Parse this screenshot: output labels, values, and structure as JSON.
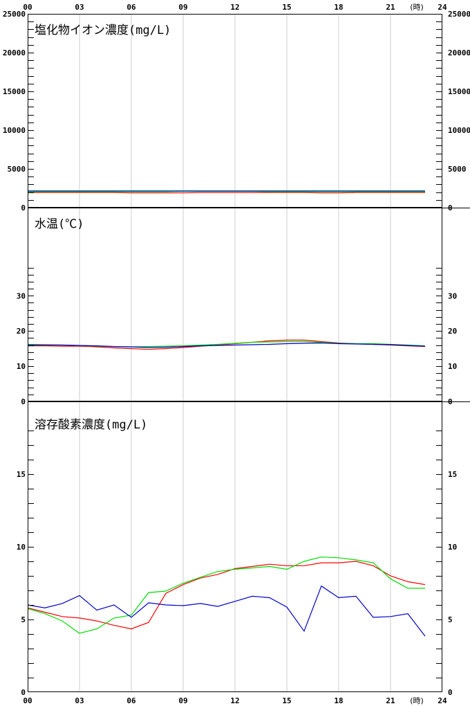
{
  "x_axis": {
    "ticks": [
      "00",
      "03",
      "06",
      "09",
      "12",
      "15",
      "18",
      "21",
      "24"
    ],
    "unit_label": "(時)"
  },
  "colors": {
    "red": "#ff0000",
    "green": "#00dd00",
    "blue": "#0000cc",
    "grid": "#cccccc"
  },
  "chart_data": [
    {
      "type": "line",
      "title": "塩化物イオン濃度(mg/L)",
      "x": [
        0,
        1,
        2,
        3,
        4,
        5,
        6,
        7,
        8,
        9,
        10,
        11,
        12,
        13,
        14,
        15,
        16,
        17,
        18,
        19,
        20,
        21,
        22,
        23
      ],
      "xlim": [
        0,
        24
      ],
      "ylim": [
        0,
        25000
      ],
      "yticks": [
        "0",
        "5000",
        "10000",
        "15000",
        "20000",
        "25000"
      ],
      "ytick_values": [
        0,
        5000,
        10000,
        15000,
        20000,
        25000
      ],
      "minor_step": 1000,
      "grid": "vertical",
      "series": [
        {
          "color": "red",
          "values": [
            1950,
            1950,
            1950,
            1950,
            1950,
            1950,
            1900,
            1900,
            1900,
            1900,
            1950,
            1950,
            1950,
            1950,
            1950,
            1950,
            1950,
            1900,
            1900,
            1950,
            1950,
            1950,
            1950,
            1950
          ]
        },
        {
          "color": "green",
          "values": [
            2050,
            2050,
            2050,
            2050,
            2050,
            2050,
            2050,
            2050,
            2050,
            2100,
            2100,
            2100,
            2100,
            2100,
            2050,
            2050,
            2050,
            2050,
            2050,
            2050,
            2050,
            2050,
            2050,
            2050
          ]
        },
        {
          "color": "blue",
          "values": [
            2150,
            2150,
            2150,
            2150,
            2150,
            2150,
            2150,
            2150,
            2150,
            2150,
            2150,
            2150,
            2150,
            2150,
            2150,
            2150,
            2150,
            2150,
            2150,
            2150,
            2150,
            2150,
            2150,
            2150
          ]
        }
      ]
    },
    {
      "type": "line",
      "title": "水温(℃)",
      "x": [
        0,
        1,
        2,
        3,
        4,
        5,
        6,
        7,
        8,
        9,
        10,
        11,
        12,
        13,
        14,
        15,
        16,
        17,
        18,
        19,
        20,
        21,
        22,
        23
      ],
      "xlim": [
        0,
        24
      ],
      "ylim": [
        0,
        55
      ],
      "yticks": [
        "0",
        "10",
        "20",
        "30"
      ],
      "ytick_values": [
        0,
        10,
        20,
        30
      ],
      "minor_step": 2,
      "minor_max": 38,
      "grid": "vertical",
      "series": [
        {
          "color": "red",
          "values": [
            15.8,
            15.8,
            15.7,
            15.7,
            15.5,
            15.2,
            15.0,
            14.8,
            15.0,
            15.3,
            15.7,
            16.0,
            16.4,
            16.8,
            17.2,
            17.4,
            17.4,
            17.0,
            16.6,
            16.4,
            16.2,
            16.0,
            15.8,
            15.6
          ]
        },
        {
          "color": "green",
          "values": [
            16.2,
            16.1,
            16.0,
            15.9,
            15.7,
            15.6,
            15.5,
            15.6,
            15.7,
            15.8,
            16.0,
            16.2,
            16.5,
            16.8,
            16.9,
            17.0,
            17.0,
            16.8,
            16.5,
            16.4,
            16.4,
            16.2,
            16.0,
            15.8
          ]
        },
        {
          "color": "blue",
          "values": [
            16.0,
            16.0,
            16.0,
            15.9,
            15.8,
            15.6,
            15.5,
            15.3,
            15.4,
            15.6,
            15.8,
            15.9,
            16.0,
            16.1,
            16.2,
            16.4,
            16.5,
            16.6,
            16.4,
            16.3,
            16.2,
            16.1,
            15.9,
            15.7
          ]
        }
      ]
    },
    {
      "type": "line",
      "title": "溶存酸素濃度(mg/L)",
      "x": [
        0,
        1,
        2,
        3,
        4,
        5,
        6,
        7,
        8,
        9,
        10,
        11,
        12,
        13,
        14,
        15,
        16,
        17,
        18,
        19,
        20,
        21,
        22,
        23
      ],
      "xlim": [
        0,
        24
      ],
      "ylim": [
        0,
        20
      ],
      "yticks": [
        "0",
        "5",
        "10",
        "15"
      ],
      "ytick_values": [
        0,
        5,
        10,
        15
      ],
      "minor_step": 1,
      "minor_max": 18,
      "grid": "vertical",
      "series": [
        {
          "color": "red",
          "values": [
            5.8,
            5.5,
            5.2,
            5.1,
            4.9,
            4.6,
            4.35,
            4.8,
            6.8,
            7.4,
            7.85,
            8.1,
            8.5,
            8.65,
            8.8,
            8.7,
            8.7,
            8.9,
            8.9,
            9.0,
            8.7,
            8.0,
            7.6,
            7.4
          ]
        },
        {
          "color": "green",
          "values": [
            5.75,
            5.4,
            4.9,
            4.05,
            4.35,
            5.1,
            5.3,
            6.85,
            6.95,
            7.5,
            7.9,
            8.3,
            8.45,
            8.55,
            8.65,
            8.45,
            9.0,
            9.3,
            9.25,
            9.1,
            8.9,
            7.8,
            7.15,
            7.15
          ]
        },
        {
          "color": "blue",
          "values": [
            6.0,
            5.8,
            6.1,
            6.65,
            5.65,
            6.0,
            5.15,
            6.15,
            6.0,
            5.95,
            6.1,
            5.9,
            6.25,
            6.6,
            6.5,
            5.85,
            4.2,
            7.3,
            6.5,
            6.6,
            5.15,
            5.2,
            5.4,
            3.85
          ]
        }
      ]
    }
  ]
}
